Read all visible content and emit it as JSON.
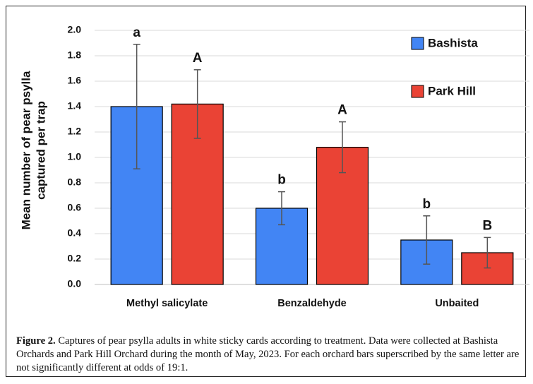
{
  "chart_data": {
    "type": "bar",
    "y_title_lines": [
      "Mean number of pear psylla",
      "captured per trap"
    ],
    "categories": [
      "Methyl salicylate",
      "Benzaldehyde",
      "Unbaited"
    ],
    "series": [
      {
        "name": "Bashista",
        "color": "#4285f4",
        "values": [
          1.4,
          0.6,
          0.35
        ],
        "errors": [
          0.49,
          0.13,
          0.19
        ],
        "letters": [
          "a",
          "b",
          "b"
        ]
      },
      {
        "name": "Park Hill",
        "color": "#ea4335",
        "values": [
          1.42,
          1.08,
          0.25
        ],
        "errors": [
          0.27,
          0.2,
          0.12
        ],
        "letters": [
          "A",
          "A",
          "B"
        ]
      }
    ],
    "ylim": [
      0,
      2
    ],
    "yticks": [
      {
        "value": 0,
        "label": "0.0"
      },
      0.2,
      0.4,
      0.6,
      0.8,
      {
        "value": 1,
        "label": "1.0"
      },
      1.2,
      1.4,
      1.6,
      1.8,
      {
        "value": 2,
        "label": "2.0"
      }
    ],
    "grid": true,
    "legend": "top-right"
  },
  "caption": {
    "label": "Figure 2.",
    "text": " Captures of pear psylla adults in white sticky cards according to treatment. Data were collected at Bashista Orchards and Park Hill Orchard during the month of May, 2023. For each orchard bars superscribed by the same letter are not significantly different at odds of 19:1."
  }
}
